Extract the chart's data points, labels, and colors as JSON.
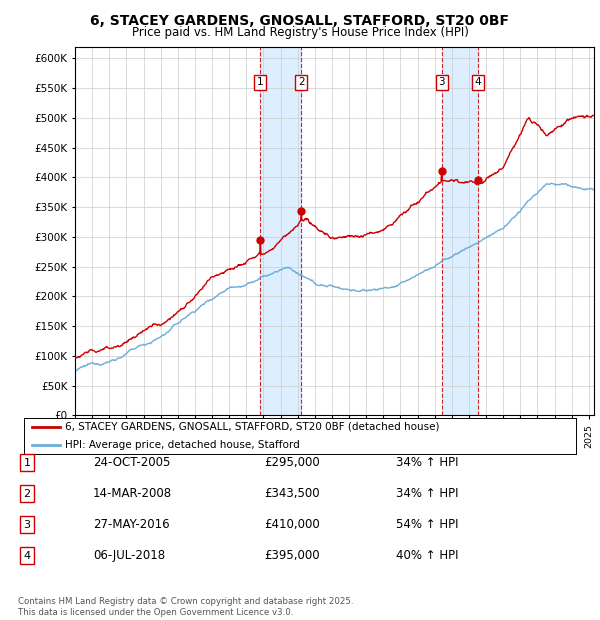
{
  "title": "6, STACEY GARDENS, GNOSALL, STAFFORD, ST20 0BF",
  "subtitle": "Price paid vs. HM Land Registry's House Price Index (HPI)",
  "ylim": [
    0,
    620000
  ],
  "yticks": [
    0,
    50000,
    100000,
    150000,
    200000,
    250000,
    300000,
    350000,
    400000,
    450000,
    500000,
    550000,
    600000
  ],
  "xlim_start": 1995.0,
  "xlim_end": 2025.3,
  "legend_line1": "6, STACEY GARDENS, GNOSALL, STAFFORD, ST20 0BF (detached house)",
  "legend_line2": "HPI: Average price, detached house, Stafford",
  "transactions": [
    {
      "num": 1,
      "date": "24-OCT-2005",
      "price": 295000,
      "pct": "34%",
      "year": 2005.81
    },
    {
      "num": 2,
      "date": "14-MAR-2008",
      "price": 343500,
      "pct": "34%",
      "year": 2008.21
    },
    {
      "num": 3,
      "date": "27-MAY-2016",
      "price": 410000,
      "pct": "54%",
      "year": 2016.41
    },
    {
      "num": 4,
      "date": "06-JUL-2018",
      "price": 395000,
      "pct": "40%",
      "year": 2018.52
    }
  ],
  "hpi_color": "#6baed6",
  "price_color": "#cc0000",
  "shade_color": "#ddeeff",
  "grid_color": "#cccccc",
  "background_color": "#ffffff",
  "footnote": "Contains HM Land Registry data © Crown copyright and database right 2025.\nThis data is licensed under the Open Government Licence v3.0."
}
